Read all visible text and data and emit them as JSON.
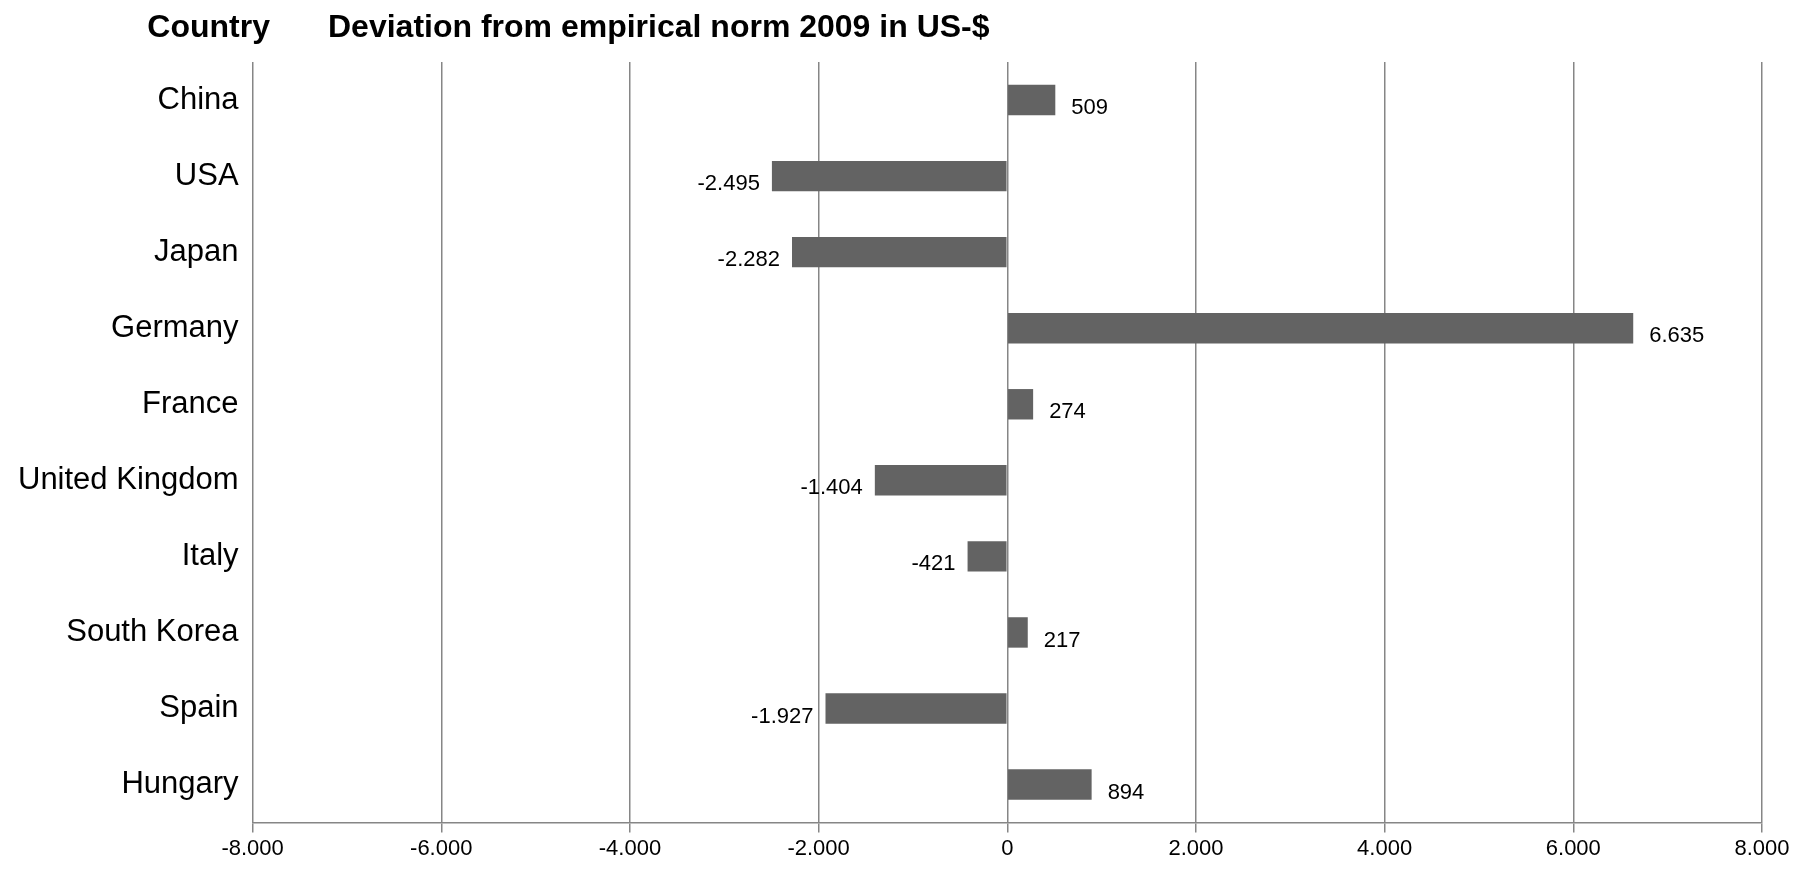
{
  "chart_data": {
    "type": "bar",
    "orientation": "horizontal",
    "title": "Deviation from empirical norm 2009 in US-$",
    "ylabel": "Country",
    "categories": [
      "China",
      "USA",
      "Japan",
      "Germany",
      "France",
      "United Kingdom",
      "Italy",
      "South Korea",
      "Spain",
      "Hungary"
    ],
    "values": [
      509,
      -2495,
      -2282,
      6635,
      274,
      -1404,
      -421,
      217,
      -1927,
      894
    ],
    "value_labels": [
      "509",
      "-2.495",
      "-2.282",
      "6.635",
      "274",
      "-1.404",
      "-421",
      "217",
      "-1.927",
      "894"
    ],
    "color": "#636363",
    "xlim": [
      -8000,
      8000
    ],
    "xticks": [
      {
        "value": -8000,
        "label": "-8.000"
      },
      {
        "value": -6000,
        "label": "-6.000"
      },
      {
        "value": -4000,
        "label": "-4.000"
      },
      {
        "value": -2000,
        "label": "-2.000"
      },
      0,
      {
        "value": 2000,
        "label": "2.000"
      },
      {
        "value": 4000,
        "label": "4.000"
      },
      {
        "value": 6000,
        "label": "6.000"
      },
      {
        "value": 8000,
        "label": "8.000"
      }
    ],
    "grid": "x"
  }
}
